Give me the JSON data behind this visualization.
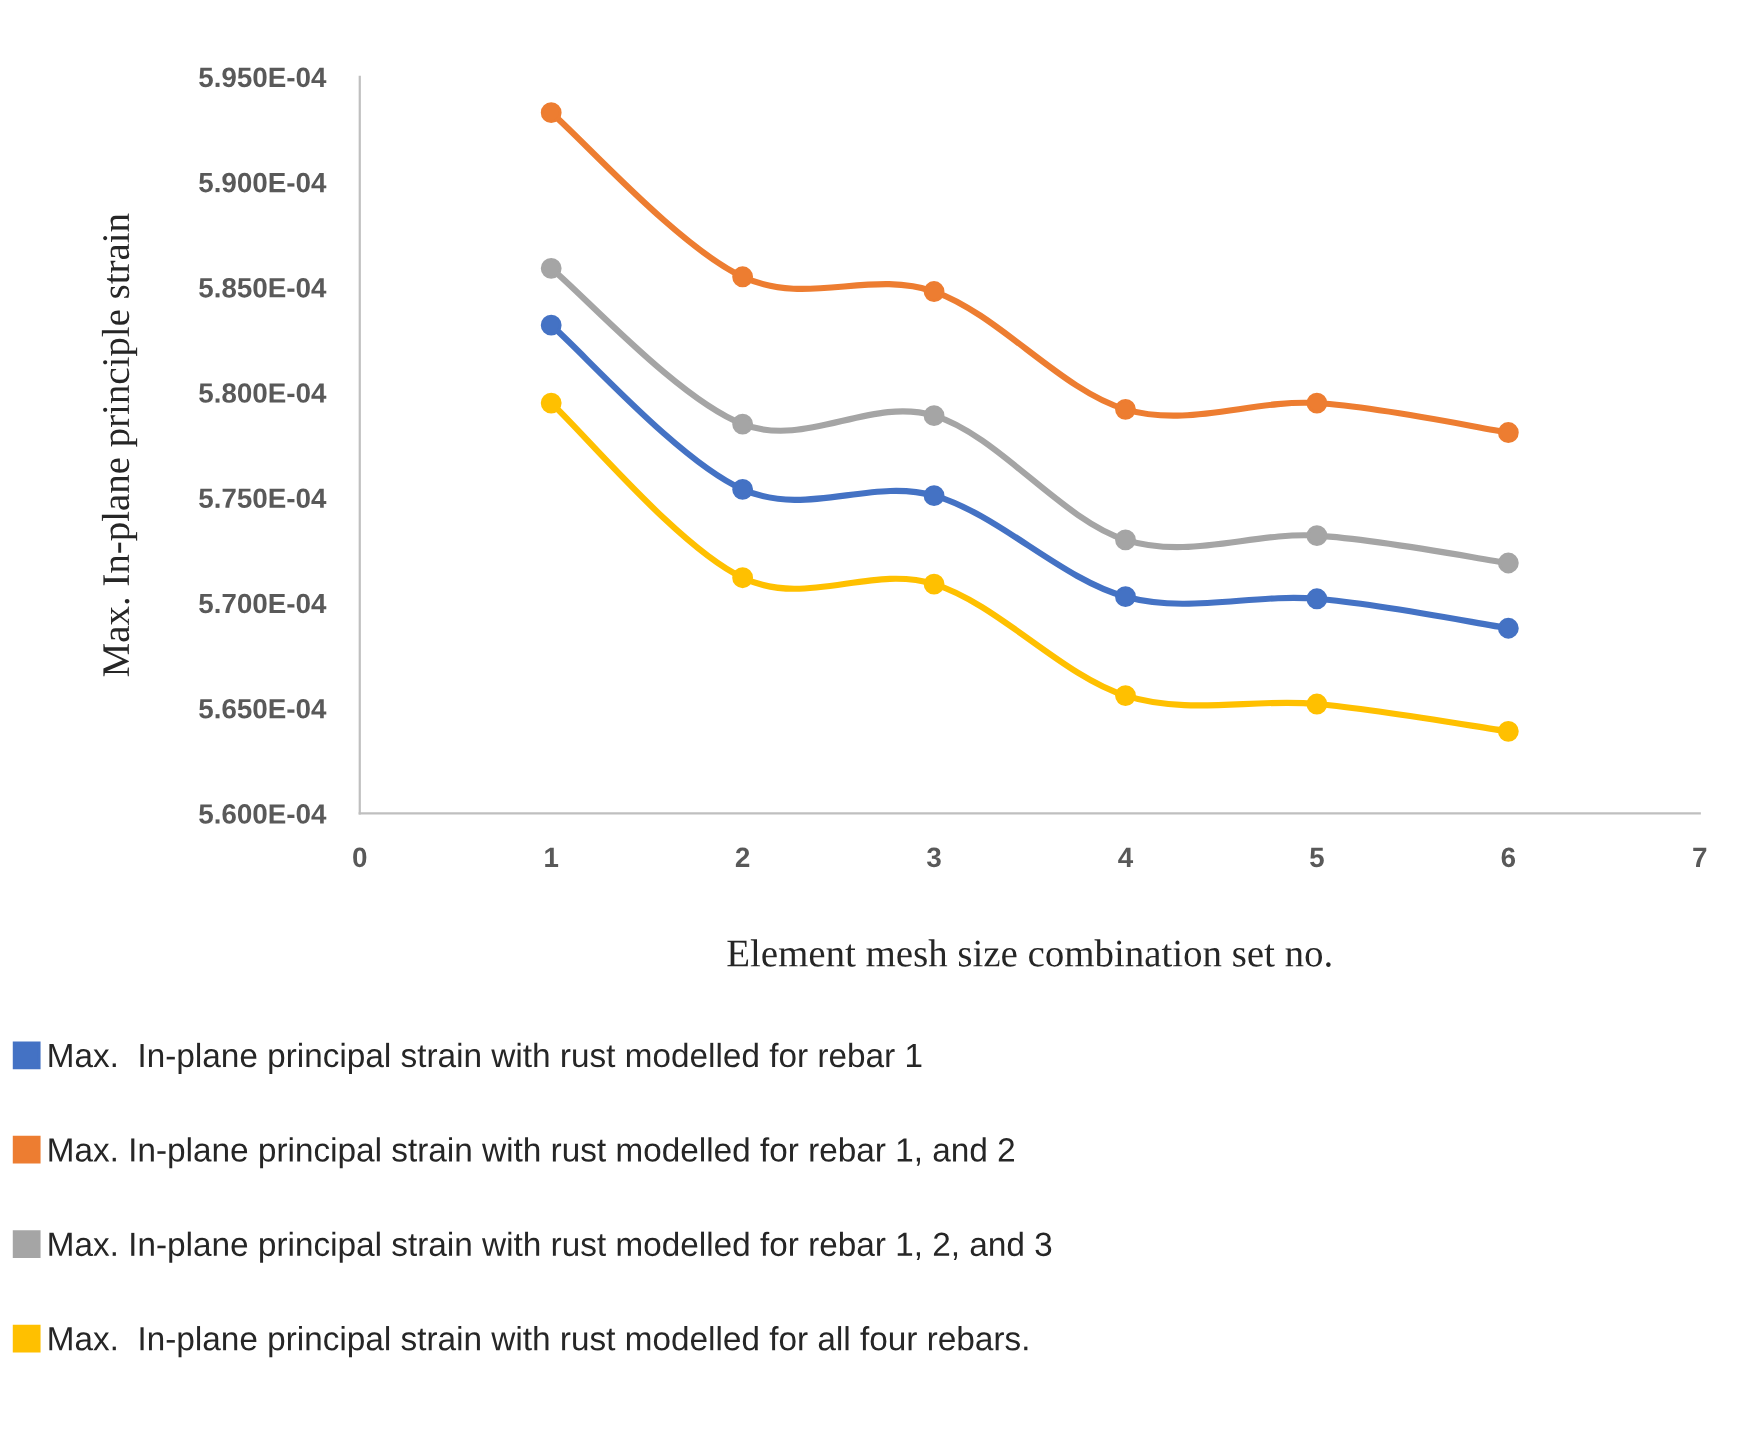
{
  "chart_data": {
    "type": "line",
    "xlabel": "Element mesh size combination set no.",
    "ylabel": "Max. In-plane principle strain",
    "x": [
      1,
      2,
      3,
      4,
      5,
      6
    ],
    "xlim": [
      0,
      7
    ],
    "xticks": [
      0,
      1,
      2,
      3,
      4,
      5,
      6,
      7
    ],
    "ylim": [
      0.00056,
      0.000595
    ],
    "yticks": [
      {
        "value": 0.00056,
        "label": "5.600E-04"
      },
      {
        "value": 0.000565,
        "label": "5.650E-04"
      },
      {
        "value": 0.00057,
        "label": "5.700E-04"
      },
      {
        "value": 0.000575,
        "label": "5.750E-04"
      },
      {
        "value": 0.00058,
        "label": "5.800E-04"
      },
      {
        "value": 0.000585,
        "label": "5.850E-04"
      },
      {
        "value": 0.00059,
        "label": "5.900E-04"
      },
      {
        "value": 0.000595,
        "label": "5.950E-04"
      }
    ],
    "marker": "circle",
    "line_style": "solid",
    "grid": false,
    "legend": "bottom",
    "series": [
      {
        "name": "Max.  In-plane principal strain with rust modelled for rebar 1",
        "color": "#4472c4",
        "values": [
          0.0005832,
          0.0005754,
          0.0005751,
          0.0005703,
          0.0005702,
          0.0005688
        ]
      },
      {
        "name": "Max. In-plane principal strain with rust modelled for rebar 1, and 2",
        "color": "#ed7d31",
        "values": [
          0.0005933,
          0.0005855,
          0.0005848,
          0.0005792,
          0.0005795,
          0.0005781
        ]
      },
      {
        "name": "Max. In-plane principal strain with rust modelled for rebar 1, 2, and 3",
        "color": "#a5a5a5",
        "values": [
          0.0005859,
          0.0005785,
          0.0005789,
          0.000573,
          0.0005732,
          0.0005719
        ]
      },
      {
        "name": "Max.  In-plane principal strain with rust modelled for all four rebars.",
        "color": "#ffc000",
        "values": [
          0.0005795,
          0.0005712,
          0.0005709,
          0.0005656,
          0.0005652,
          0.0005639
        ]
      }
    ]
  }
}
